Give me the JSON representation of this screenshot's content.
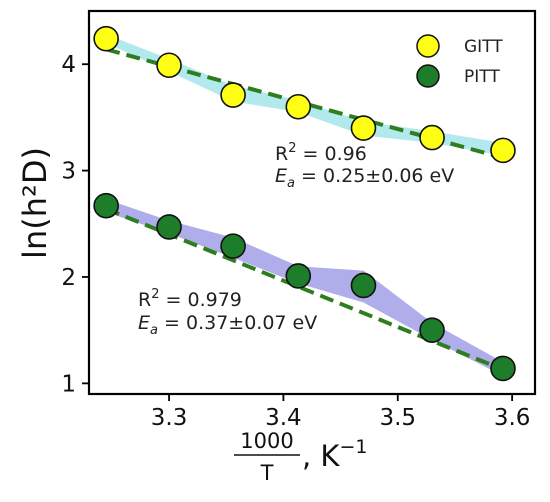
{
  "chart_data": {
    "type": "scatter",
    "xlim": [
      3.23,
      3.62
    ],
    "ylim": [
      0.9,
      4.5
    ],
    "x_ticks": [
      "3.3",
      "3.4",
      "3.5",
      "3.6"
    ],
    "y_ticks": [
      "1",
      "2",
      "3",
      "4"
    ],
    "ylabel": "ln(h²D)",
    "xlabel": {
      "numerator": "1000",
      "denominator": "T",
      "unit_base": ", K",
      "unit_exp": "−1"
    },
    "legend": {
      "placement": "top-right"
    },
    "series": [
      {
        "name": "GITT",
        "marker_color": "#ffff14",
        "band_color": "#9fe3e8",
        "fit_color": "#2e7d1e",
        "x": [
          3.245,
          3.3,
          3.356,
          3.413,
          3.47,
          3.53,
          3.592
        ],
        "y": [
          4.24,
          3.99,
          3.71,
          3.6,
          3.4,
          3.31,
          3.19
        ],
        "band_upper": [
          4.28,
          4.05,
          3.8,
          3.66,
          3.46,
          3.37,
          3.26
        ],
        "band_lower": [
          4.2,
          3.93,
          3.65,
          3.55,
          3.33,
          3.26,
          3.14
        ],
        "fit": {
          "x": [
            3.245,
            3.592
          ],
          "y": [
            4.14,
            3.12
          ]
        },
        "annotation": {
          "r2_prefix": "R",
          "r2_sup": "2",
          "r2_value": " = 0.96",
          "ea_symbol": "E",
          "ea_sub": "a",
          "ea_value": " = 0.25±0.06 eV"
        }
      },
      {
        "name": "PITT",
        "marker_color": "#1e7d2a",
        "band_color": "#9b9ae6",
        "fit_color": "#2e7d1e",
        "x": [
          3.245,
          3.3,
          3.356,
          3.413,
          3.47,
          3.53,
          3.592
        ],
        "y": [
          2.67,
          2.47,
          2.29,
          2.01,
          1.92,
          1.5,
          1.14
        ],
        "band_upper": [
          2.73,
          2.53,
          2.37,
          2.1,
          2.06,
          1.57,
          1.2
        ],
        "band_lower": [
          2.61,
          2.41,
          2.18,
          1.94,
          1.76,
          1.41,
          1.07
        ],
        "fit": {
          "x": [
            3.245,
            3.592
          ],
          "y": [
            2.64,
            1.13
          ]
        },
        "annotation": {
          "r2_prefix": "R",
          "r2_sup": "2",
          "r2_value": " = 0.979",
          "ea_symbol": "E",
          "ea_sub": "a",
          "ea_value": " = 0.37±0.07 eV"
        }
      }
    ]
  }
}
